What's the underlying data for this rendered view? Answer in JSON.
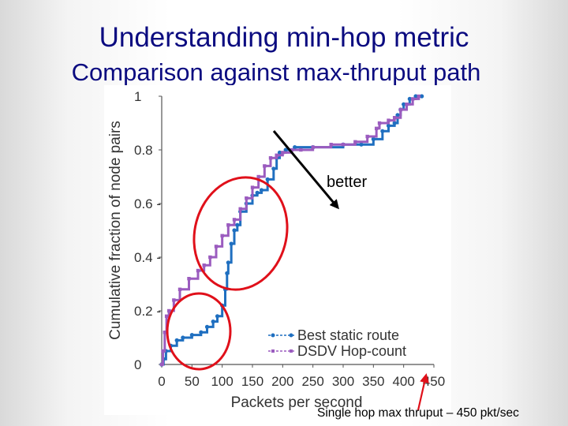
{
  "slide": {
    "title": "Understanding min-hop metric",
    "subtitle": "Comparison against max-thruput path",
    "footnote": "Single hop max thruput – 450 pkt/sec"
  },
  "annotations": {
    "arrow_label": "better"
  },
  "colors": {
    "title": "#0b0b80",
    "best_static_route": "#1f6fc0",
    "dsdv_hop_count": "#9b5cbf",
    "highlight_circle": "#e0101a",
    "arrow": "#000000",
    "footnote_arrow": "#e0101a"
  },
  "chart_data": {
    "type": "line",
    "title": "",
    "xlabel": "Packets per second",
    "ylabel": "Cumulative fraction of node pairs",
    "xlim": [
      0,
      450
    ],
    "ylim": [
      0,
      1
    ],
    "xticks": [
      "0",
      "50",
      "100",
      "150",
      "200",
      "250",
      "300",
      "350",
      "400",
      "450"
    ],
    "yticks": [
      "0",
      "0.2 -",
      "0.4 -",
      "0.6 -",
      "0.8",
      "1"
    ],
    "grid": false,
    "legend_position": "bottom-right",
    "series": [
      {
        "name": "Best static route",
        "color": "#1f6fc0",
        "x": [
          0,
          3,
          7,
          15,
          25,
          35,
          50,
          65,
          75,
          85,
          92,
          100,
          105,
          108,
          110,
          115,
          120,
          125,
          130,
          140,
          150,
          158,
          165,
          175,
          185,
          190,
          195,
          205,
          220,
          250,
          300,
          330,
          350,
          365,
          375,
          385,
          390,
          395,
          400,
          410,
          420,
          430
        ],
        "y": [
          0,
          0.02,
          0.05,
          0.07,
          0.09,
          0.1,
          0.11,
          0.12,
          0.14,
          0.16,
          0.18,
          0.22,
          0.28,
          0.34,
          0.38,
          0.45,
          0.5,
          0.52,
          0.57,
          0.6,
          0.63,
          0.64,
          0.65,
          0.69,
          0.73,
          0.77,
          0.79,
          0.8,
          0.81,
          0.81,
          0.82,
          0.82,
          0.84,
          0.87,
          0.89,
          0.9,
          0.93,
          0.95,
          0.97,
          0.99,
          1.0,
          1.0
        ]
      },
      {
        "name": "DSDV Hop-count",
        "color": "#9b5cbf",
        "x": [
          0,
          2,
          5,
          8,
          12,
          20,
          30,
          45,
          60,
          70,
          80,
          90,
          100,
          110,
          120,
          130,
          140,
          150,
          160,
          170,
          180,
          190,
          200,
          215,
          230,
          250,
          280,
          300,
          320,
          340,
          355,
          360,
          375,
          385,
          395,
          405,
          415,
          425
        ],
        "y": [
          0,
          0.05,
          0.12,
          0.18,
          0.2,
          0.24,
          0.28,
          0.32,
          0.35,
          0.37,
          0.4,
          0.44,
          0.48,
          0.52,
          0.54,
          0.58,
          0.62,
          0.66,
          0.7,
          0.74,
          0.77,
          0.78,
          0.79,
          0.8,
          0.8,
          0.81,
          0.82,
          0.82,
          0.83,
          0.85,
          0.88,
          0.9,
          0.91,
          0.92,
          0.95,
          0.97,
          0.99,
          1.0
        ]
      }
    ]
  }
}
